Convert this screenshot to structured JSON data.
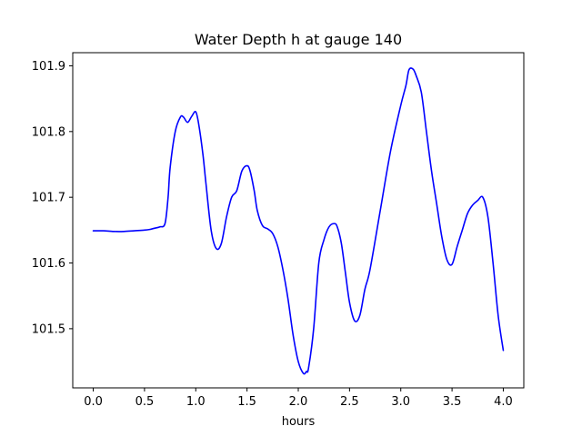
{
  "chart_data": {
    "type": "line",
    "title": "Water Depth h at gauge 140",
    "xlabel": "hours",
    "ylabel": "",
    "xlim": [
      -0.2,
      4.2
    ],
    "ylim": [
      101.41,
      101.92
    ],
    "xticks": [
      0.0,
      0.5,
      1.0,
      1.5,
      2.0,
      2.5,
      3.0,
      3.5,
      4.0
    ],
    "xtick_labels": [
      "0.0",
      "0.5",
      "1.0",
      "1.5",
      "2.0",
      "2.5",
      "3.0",
      "3.5",
      "4.0"
    ],
    "yticks": [
      101.5,
      101.6,
      101.7,
      101.8,
      101.9
    ],
    "ytick_labels": [
      "101.5",
      "101.6",
      "101.7",
      "101.8",
      "101.9"
    ],
    "grid": false,
    "series": [
      {
        "color": "#0000ff",
        "x": [
          0.0,
          0.1,
          0.2,
          0.3,
          0.4,
          0.5,
          0.55,
          0.6,
          0.65,
          0.7,
          0.73,
          0.75,
          0.8,
          0.85,
          0.88,
          0.92,
          0.96,
          1.0,
          1.03,
          1.07,
          1.1,
          1.15,
          1.2,
          1.25,
          1.3,
          1.35,
          1.4,
          1.45,
          1.5,
          1.53,
          1.57,
          1.6,
          1.65,
          1.7,
          1.75,
          1.8,
          1.85,
          1.9,
          1.95,
          2.0,
          2.05,
          2.08,
          2.1,
          2.15,
          2.2,
          2.25,
          2.3,
          2.35,
          2.38,
          2.42,
          2.46,
          2.5,
          2.55,
          2.6,
          2.65,
          2.7,
          2.8,
          2.9,
          3.0,
          3.05,
          3.08,
          3.12,
          3.15,
          3.2,
          3.25,
          3.3,
          3.35,
          3.4,
          3.45,
          3.5,
          3.55,
          3.6,
          3.65,
          3.7,
          3.75,
          3.8,
          3.85,
          3.9,
          3.95,
          4.0
        ],
        "y": [
          101.649,
          101.649,
          101.648,
          101.648,
          101.649,
          101.65,
          101.651,
          101.653,
          101.655,
          101.66,
          101.7,
          101.745,
          101.8,
          101.822,
          101.822,
          101.814,
          101.823,
          101.83,
          101.81,
          101.765,
          101.72,
          101.65,
          101.622,
          101.63,
          101.67,
          101.7,
          101.71,
          101.74,
          101.748,
          101.74,
          101.71,
          101.68,
          101.657,
          101.652,
          101.645,
          101.625,
          101.59,
          101.545,
          101.49,
          101.45,
          101.432,
          101.435,
          101.44,
          101.5,
          101.6,
          101.635,
          101.655,
          101.66,
          101.655,
          101.63,
          101.585,
          101.54,
          101.512,
          101.52,
          101.56,
          101.59,
          101.68,
          101.77,
          101.84,
          101.87,
          101.894,
          101.895,
          101.885,
          101.86,
          101.8,
          101.74,
          101.69,
          101.64,
          101.605,
          101.598,
          101.625,
          101.65,
          101.675,
          101.688,
          101.695,
          101.7,
          101.67,
          101.6,
          101.52,
          101.467
        ]
      }
    ]
  }
}
